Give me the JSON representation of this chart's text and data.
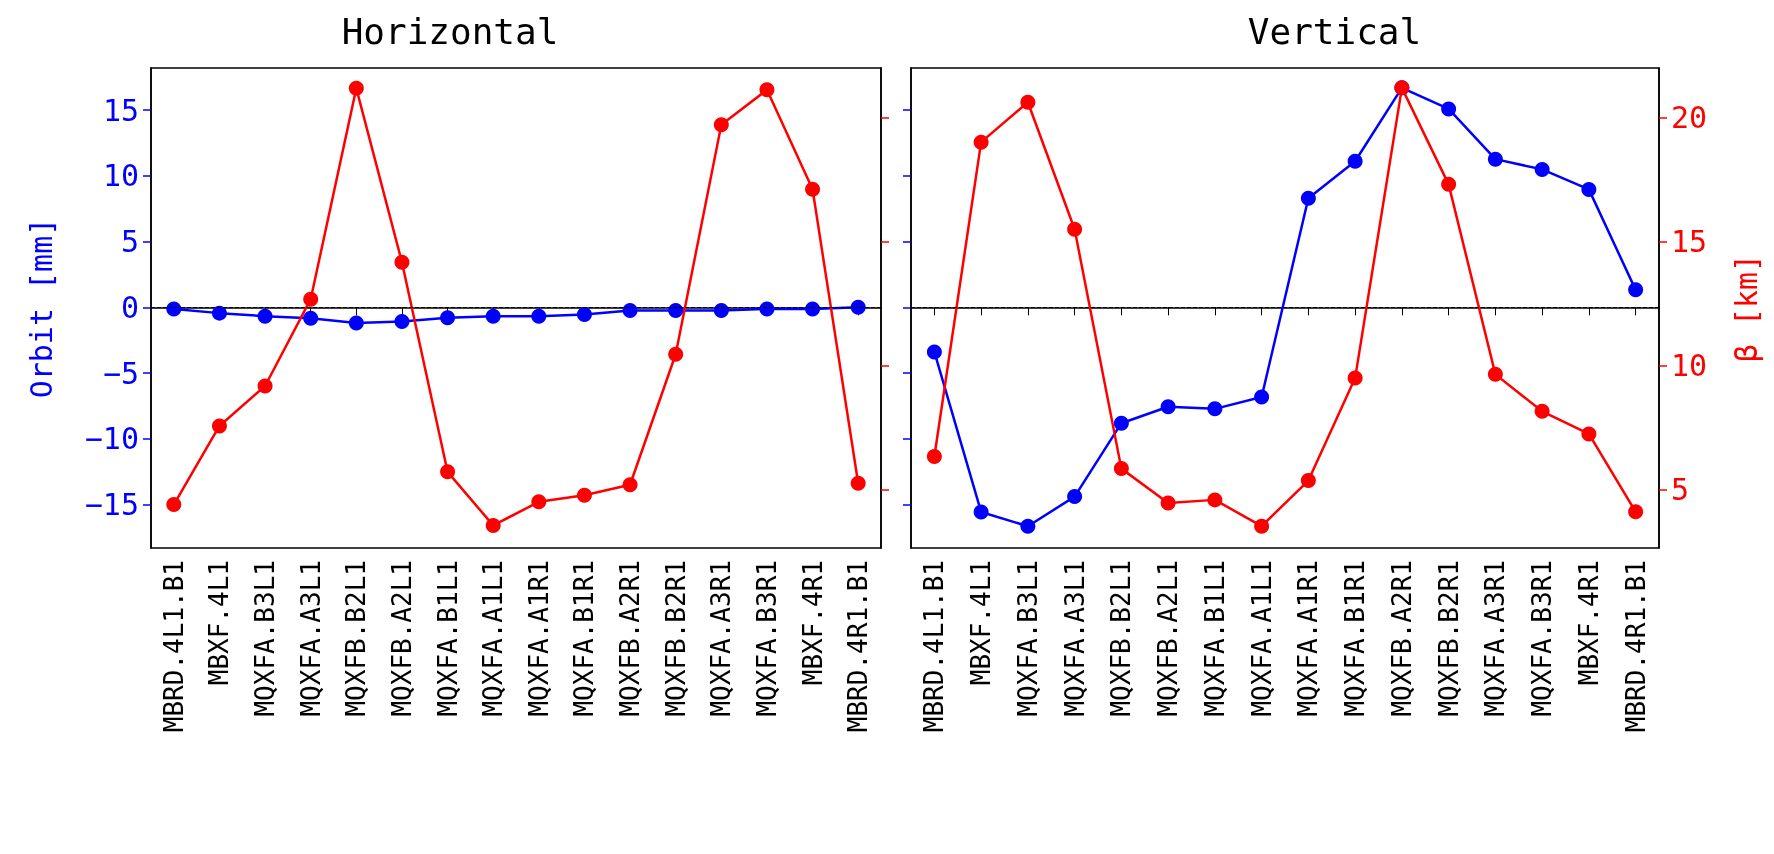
{
  "chart_data": [
    {
      "type": "line",
      "title": "Horizontal",
      "ylabel": "Orbit [mm]",
      "categories": [
        "MBRD.4L1.B1",
        "MBXF.4L1",
        "MQXFA.B3L1",
        "MQXFA.A3L1",
        "MQXFB.B2L1",
        "MQXFB.A2L1",
        "MQXFA.B1L1",
        "MQXFA.A1L1",
        "MQXFA.A1R1",
        "MQXFA.B1R1",
        "MQXFB.A2R1",
        "MQXFB.B2R1",
        "MQXFA.A3R1",
        "MQXFA.B3R1",
        "MBXF.4R1",
        "MBRD.4R1.B1"
      ],
      "series": [
        {
          "color": "#0000ff",
          "values": [
            -0.12,
            -0.44,
            -0.67,
            -0.83,
            -1.19,
            -1.07,
            -0.79,
            -0.67,
            -0.67,
            -0.55,
            -0.24,
            -0.24,
            -0.24,
            -0.12,
            -0.12,
            0
          ]
        },
        {
          "color": "#ff0000",
          "axis": "y2",
          "values": [
            4.4,
            7.57,
            9.18,
            12.68,
            21.18,
            14.17,
            5.72,
            3.56,
            4.51,
            4.78,
            5.2,
            10.46,
            19.71,
            21.12,
            17.11,
            5.26
          ]
        }
      ],
      "ylim": [
        -18.3,
        18.2
      ],
      "yticks": [
        -15,
        -10,
        -5,
        0,
        5,
        10,
        15
      ],
      "y2lim": [
        2.65,
        22.0
      ],
      "ref_lines": [
        {
          "axis": "y",
          "value": 0,
          "color": "#000000",
          "line_style": "dashed"
        }
      ],
      "marker": "circle",
      "grid": false
    },
    {
      "type": "line",
      "title": "Vertical",
      "y2label": "β [km]",
      "categories": [
        "MBRD.4L1.B1",
        "MBXF.4L1",
        "MQXFA.B3L1",
        "MQXFA.A3L1",
        "MQXFB.B2L1",
        "MQXFB.A2L1",
        "MQXFA.B1L1",
        "MQXFA.A1L1",
        "MQXFA.A1R1",
        "MQXFA.B1R1",
        "MQXFB.A2R1",
        "MQXFB.B2R1",
        "MQXFA.A3R1",
        "MQXFA.B3R1",
        "MBXF.4R1",
        "MBRD.4R1.B1"
      ],
      "series": [
        {
          "color": "#0000ff",
          "values": [
            -3.39,
            -15.56,
            -16.65,
            -14.39,
            -8.81,
            -7.56,
            -7.72,
            -6.82,
            8.3,
            11.11,
            16.69,
            15.09,
            11.27,
            10.49,
            8.97,
            1.33
          ]
        },
        {
          "color": "#ff0000",
          "axis": "y2",
          "values": [
            6.34,
            19.01,
            20.62,
            15.5,
            5.85,
            4.46,
            4.59,
            3.53,
            5.37,
            9.5,
            21.2,
            17.31,
            9.65,
            8.16,
            7.25,
            4.11
          ]
        }
      ],
      "ylim": [
        -18.3,
        18.2
      ],
      "y2lim": [
        2.65,
        22.0
      ],
      "y2ticks": [
        5,
        10,
        15,
        20
      ],
      "ref_lines": [
        {
          "axis": "y",
          "value": 0,
          "color": "#000000",
          "line_style": "dashed"
        }
      ],
      "marker": "circle",
      "grid": false
    }
  ]
}
